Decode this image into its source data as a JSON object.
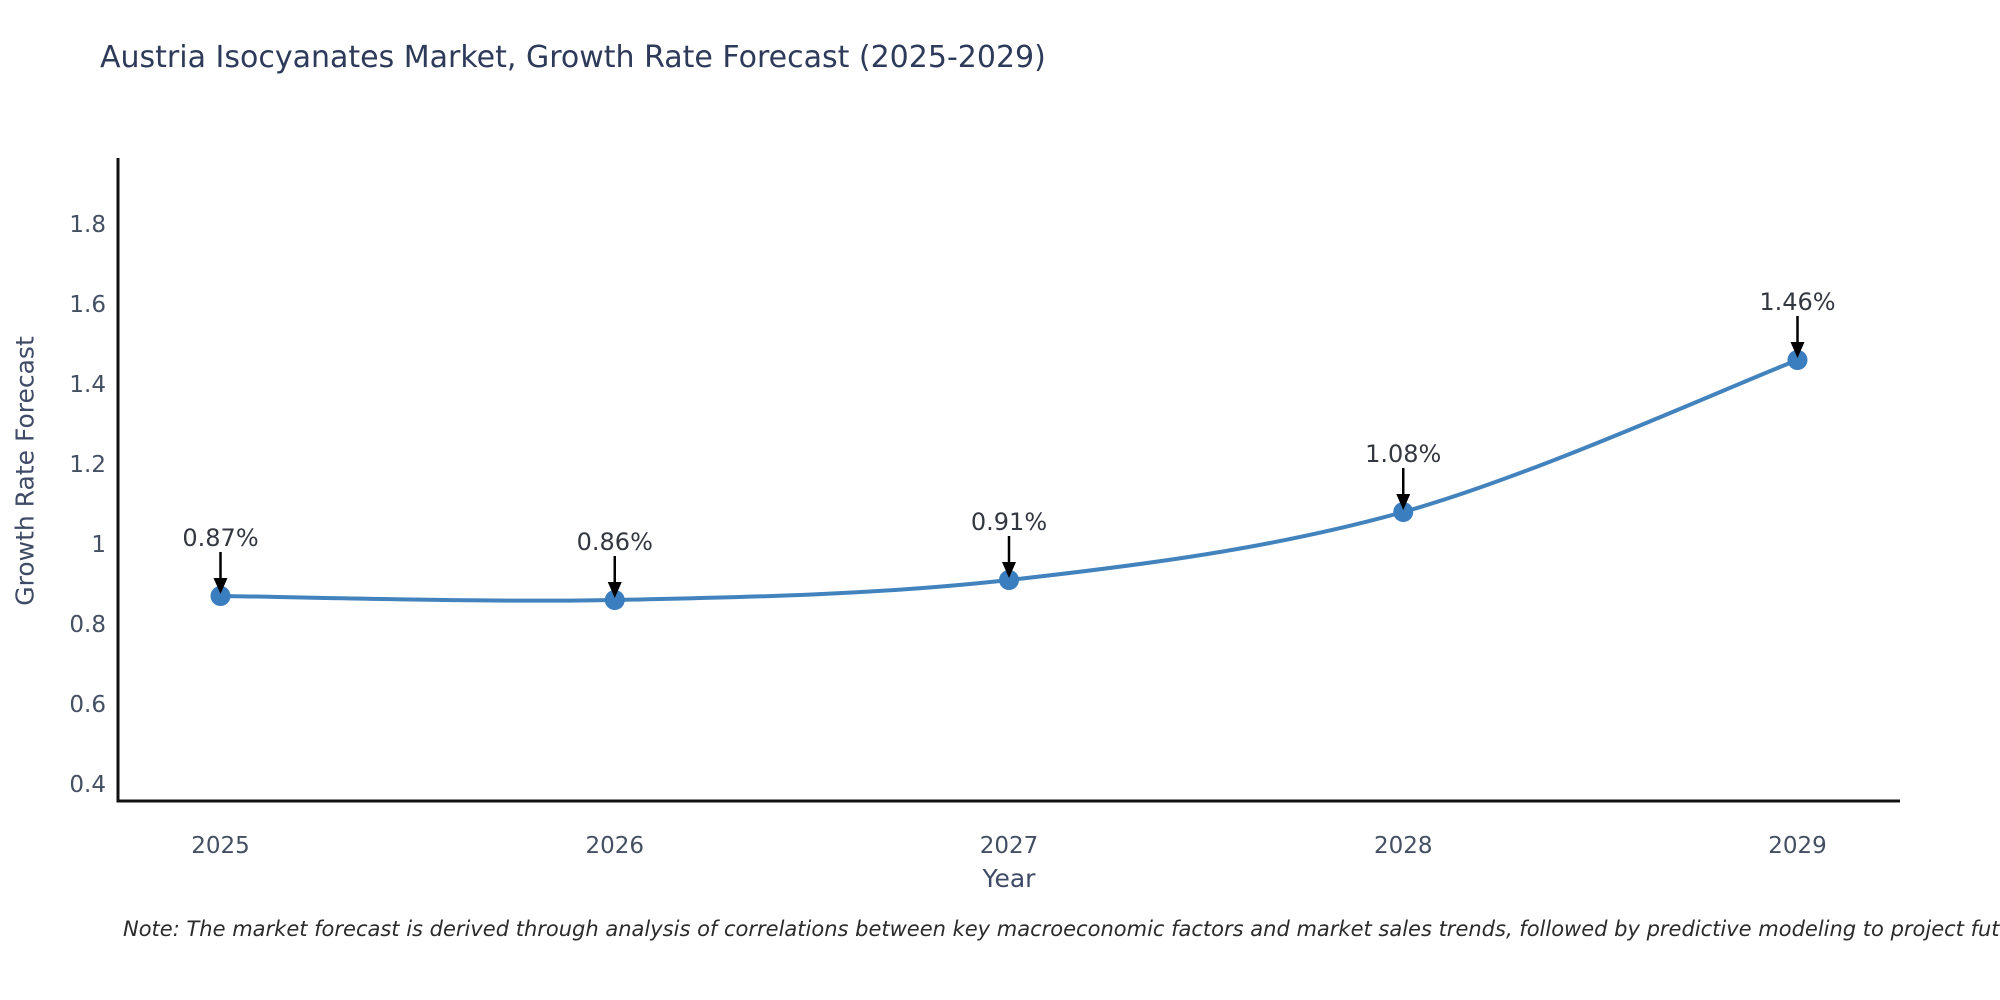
{
  "title": "Austria Isocyanates Market, Growth Rate Forecast (2025-2029)",
  "note": "Note: The market forecast is derived through analysis of correlations between key macroeconomic factors and market sales trends, followed by predictive modeling to project future sales",
  "chart_data": {
    "type": "line",
    "title": "Austria Isocyanates Market, Growth Rate Forecast (2025-2029)",
    "xlabel": "Year",
    "ylabel": "Growth Rate Forecast",
    "x": [
      2025,
      2026,
      2027,
      2028,
      2029
    ],
    "values": [
      0.87,
      0.86,
      0.91,
      1.08,
      1.46
    ],
    "point_labels": [
      "0.87%",
      "0.86%",
      "0.91%",
      "1.08%",
      "1.46%"
    ],
    "xtick_labels": [
      "2025",
      "2026",
      "2027",
      "2028",
      "2029"
    ],
    "yticks": [
      0.4,
      0.6,
      0.8,
      1,
      1.2,
      1.4,
      1.6,
      1.8
    ],
    "ytick_labels": [
      "0.4",
      "0.6",
      "0.8",
      "1",
      "1.2",
      "1.4",
      "1.6",
      "1.8"
    ],
    "xlim": [
      2024.74,
      2029.26
    ],
    "ylim": [
      0.3575,
      1.965
    ],
    "grid": false,
    "legend": "none",
    "line_shape": "spline",
    "marker": "circle",
    "annotation_arrows": true,
    "colors": {
      "line": "#4383bd",
      "marker": "#3b7ec0",
      "arrow": "#000000",
      "axis": "#111111",
      "title": "#2e3a59",
      "tick_label": "#444f63",
      "annotation_text": "#333740",
      "note_text": "#2b2b2b",
      "background": "#ffffff"
    }
  }
}
